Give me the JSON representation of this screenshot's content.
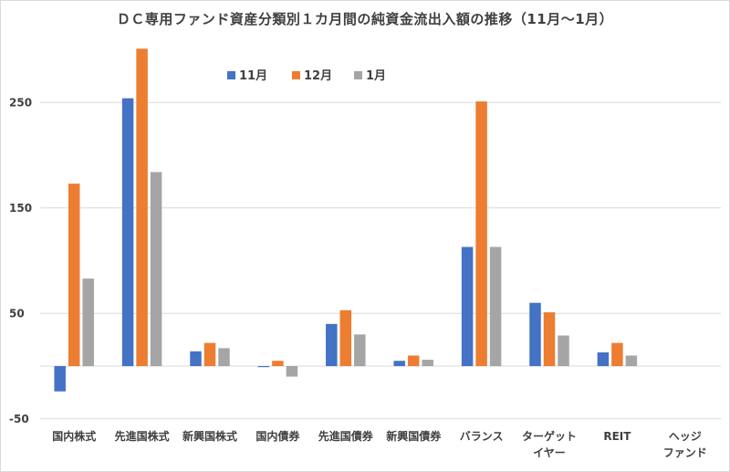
{
  "chart_data": {
    "type": "bar",
    "title": "ＤＣ専用ファンド資産分類別１カ月間の純資金流出入額の推移（11月～1月）",
    "xlabel": "",
    "ylabel": "",
    "ylim": [
      -50,
      300
    ],
    "yticks": [
      -50,
      50,
      150,
      250
    ],
    "categories": [
      [
        "国内株式"
      ],
      [
        "先進国株式"
      ],
      [
        "新興国株式"
      ],
      [
        "国内債券"
      ],
      [
        "先進国債券"
      ],
      [
        "新興国債券"
      ],
      [
        "バランス"
      ],
      [
        "ターゲット",
        "イヤー"
      ],
      [
        "REIT"
      ],
      [
        "ヘッジ",
        "ファンド"
      ]
    ],
    "series": [
      {
        "name": "11月",
        "color": "#4472c4",
        "values": [
          -24,
          254,
          14,
          -1,
          40,
          5,
          113,
          60,
          13,
          0
        ]
      },
      {
        "name": "12月",
        "color": "#ed7d31",
        "values": [
          173,
          301,
          22,
          5,
          53,
          10,
          251,
          51,
          22,
          0
        ]
      },
      {
        "name": "1月",
        "color": "#a5a5a5",
        "values": [
          83,
          184,
          17,
          -10,
          30,
          6,
          113,
          29,
          10,
          0
        ]
      }
    ],
    "legend": "top-center",
    "grid": true
  }
}
